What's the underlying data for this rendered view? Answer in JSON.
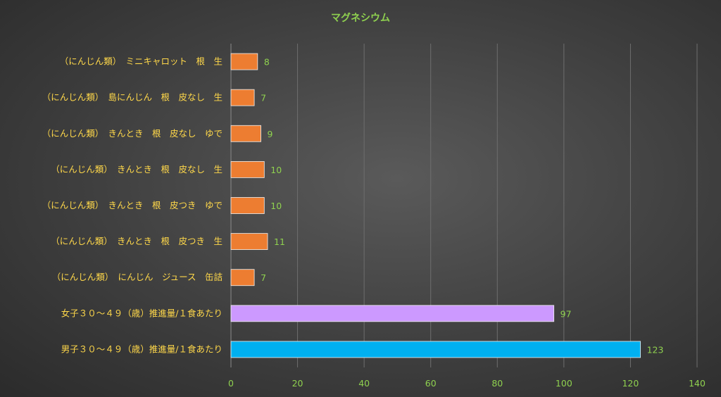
{
  "chart_data": {
    "type": "bar",
    "orientation": "horizontal",
    "title": "マグネシウム",
    "categories": [
      "（にんじん類）　ミニキャロット　根　生",
      "（にんじん類）　島にんじん　根　皮なし　生",
      "（にんじん類）　きんとき　根　皮なし　ゆで",
      "（にんじん類）　きんとき　根　皮なし　生",
      "（にんじん類）　きんとき　根　皮つき　ゆで",
      "（にんじん類）　きんとき　根　皮つき　生",
      "（にんじん類）　にんじん　ジュース　缶詰",
      "女子３０～４９（歳）推進量/１食あたり",
      "男子３０～４９（歳）推進量/１食あたり"
    ],
    "values": [
      8,
      7,
      9,
      10,
      10,
      11,
      7,
      97,
      123
    ],
    "colors": [
      "#ed7d31",
      "#ed7d31",
      "#ed7d31",
      "#ed7d31",
      "#ed7d31",
      "#ed7d31",
      "#ed7d31",
      "#cc99ff",
      "#00b0f0"
    ],
    "xlim": [
      0,
      140
    ],
    "xticks": [
      0,
      20,
      40,
      60,
      80,
      100,
      120,
      140
    ],
    "grid": true,
    "legend": "none",
    "text_colors": {
      "title": "#8fd14f",
      "categories": "#ffd84a",
      "ticks": "#8fd14f",
      "data_labels": "#8fd14f"
    }
  }
}
